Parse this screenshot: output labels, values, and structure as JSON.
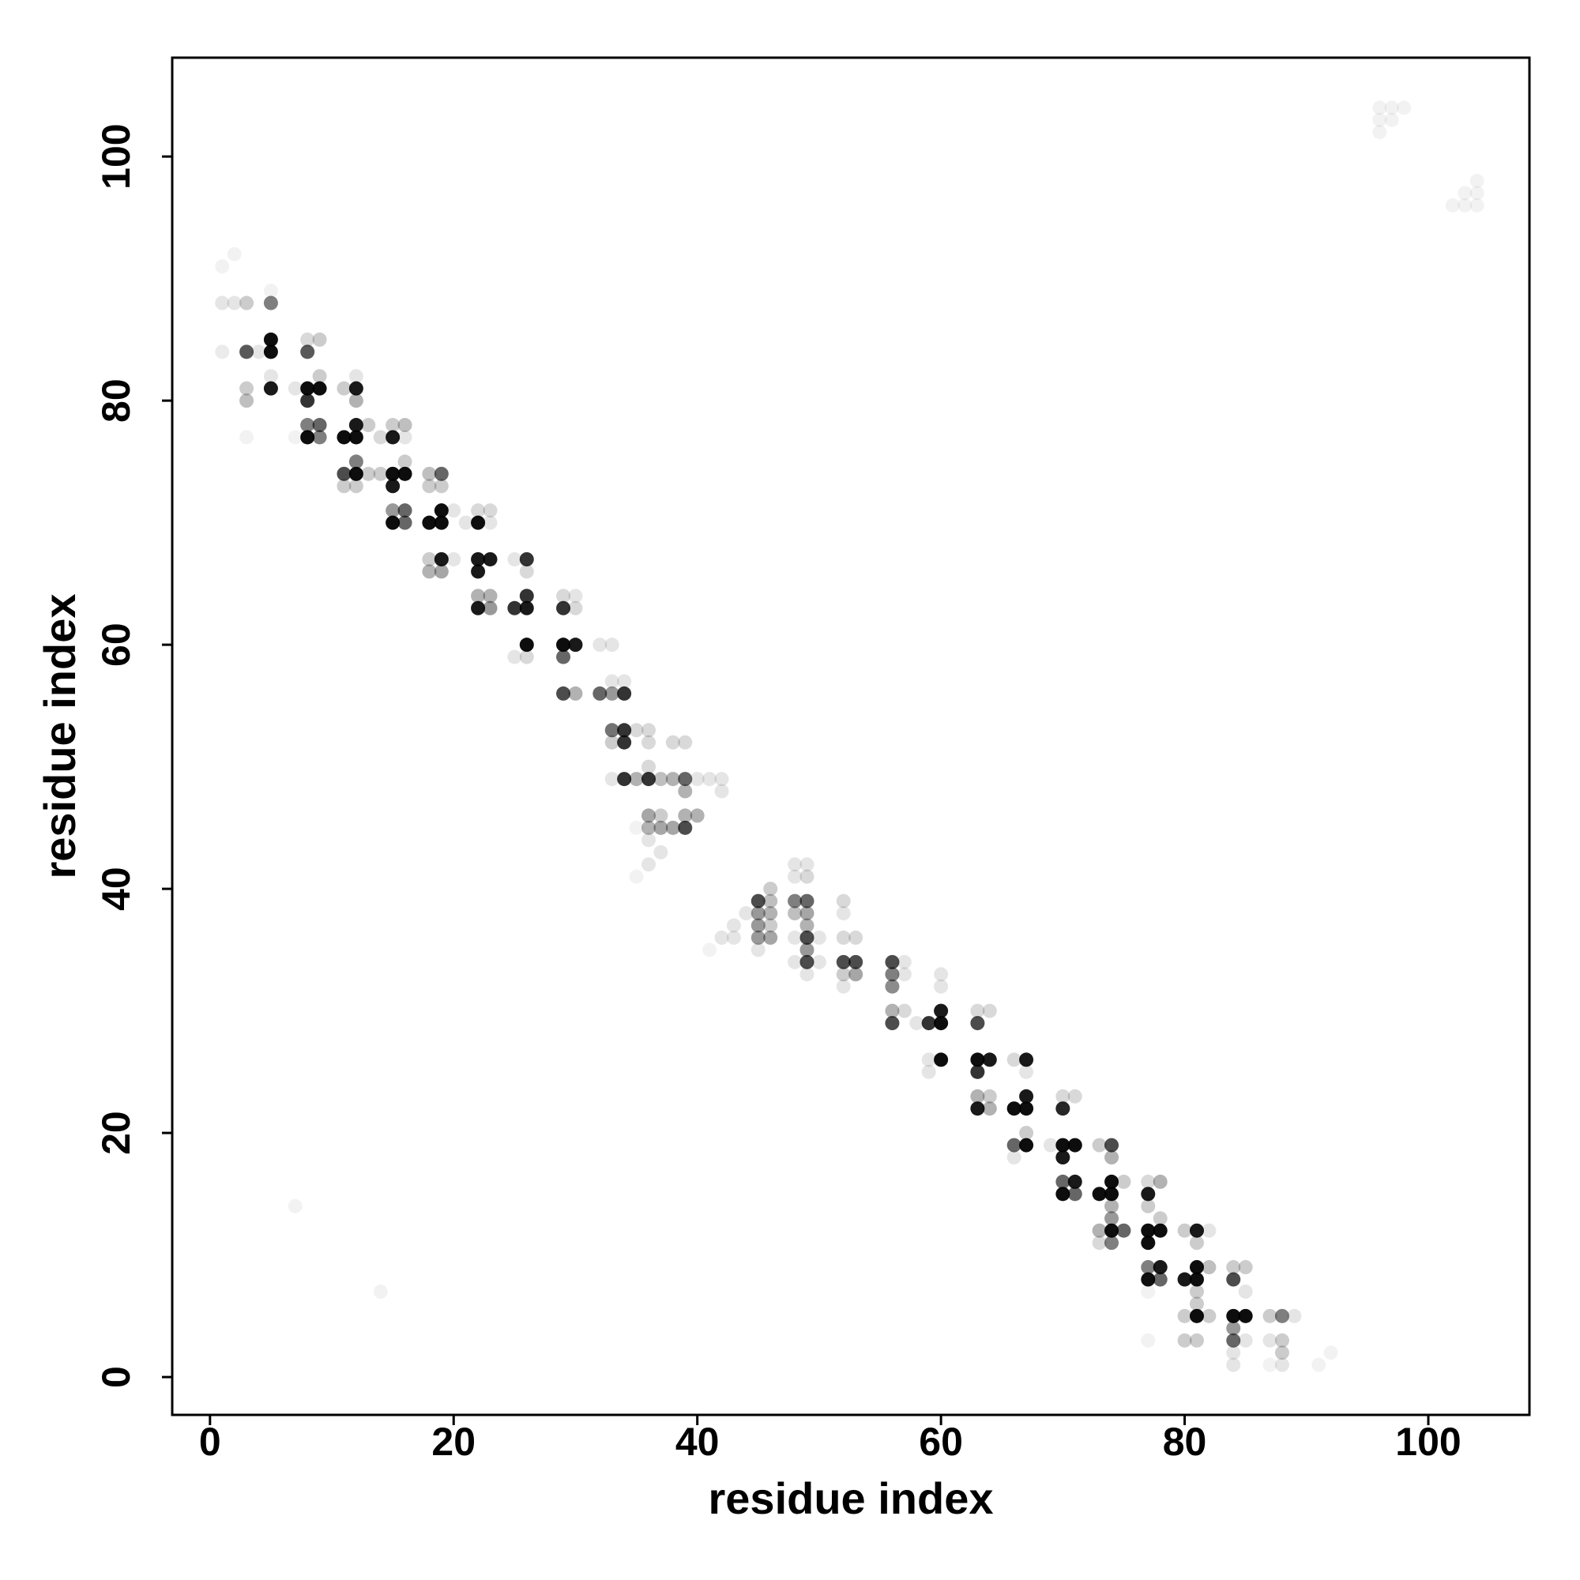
{
  "chart_data": {
    "type": "scatter",
    "x_label": "residue index",
    "y_label": "residue index",
    "xlim": [
      -3.1,
      108.3
    ],
    "ylim": [
      -3.1,
      108.1
    ],
    "xticks": [
      0,
      20,
      40,
      60,
      80,
      100
    ],
    "yticks": [
      0,
      20,
      40,
      60,
      80,
      100
    ],
    "grid": false,
    "color": "#000000",
    "points": [
      [
        1,
        91,
        0.05
      ],
      [
        2,
        92,
        0.05
      ],
      [
        1,
        88,
        0.1
      ],
      [
        2,
        88,
        0.1
      ],
      [
        3,
        88,
        0.2
      ],
      [
        5,
        88,
        0.5
      ],
      [
        5,
        89,
        0.05
      ],
      [
        1,
        84,
        0.08
      ],
      [
        3,
        84,
        0.65
      ],
      [
        4,
        84,
        0.1
      ],
      [
        5,
        84,
        0.95
      ],
      [
        5,
        85,
        0.95
      ],
      [
        8,
        84,
        0.65
      ],
      [
        8,
        85,
        0.15
      ],
      [
        9,
        85,
        0.2
      ],
      [
        3,
        81,
        0.2
      ],
      [
        3,
        80,
        0.25
      ],
      [
        5,
        81,
        0.9
      ],
      [
        5,
        82,
        0.1
      ],
      [
        7,
        81,
        0.1
      ],
      [
        8,
        81,
        0.95
      ],
      [
        9,
        81,
        0.95
      ],
      [
        8,
        80,
        0.8
      ],
      [
        9,
        82,
        0.2
      ],
      [
        3,
        77,
        0.05
      ],
      [
        8,
        77,
        0.95
      ],
      [
        9,
        77,
        0.5
      ],
      [
        8,
        78,
        0.5
      ],
      [
        9,
        78,
        0.6
      ],
      [
        7,
        77,
        0.05
      ],
      [
        11,
        81,
        0.2
      ],
      [
        12,
        81,
        0.9
      ],
      [
        12,
        80,
        0.3
      ],
      [
        12,
        82,
        0.1
      ],
      [
        11,
        77,
        0.95
      ],
      [
        12,
        77,
        0.95
      ],
      [
        12,
        78,
        0.9
      ],
      [
        13,
        78,
        0.2
      ],
      [
        14,
        77,
        0.15
      ],
      [
        15,
        77,
        0.9
      ],
      [
        15,
        78,
        0.2
      ],
      [
        16,
        78,
        0.25
      ],
      [
        16,
        77,
        0.1
      ],
      [
        11,
        74,
        0.7
      ],
      [
        12,
        74,
        0.95
      ],
      [
        12,
        75,
        0.5
      ],
      [
        12,
        73,
        0.2
      ],
      [
        11,
        73,
        0.2
      ],
      [
        13,
        74,
        0.2
      ],
      [
        14,
        74,
        0.2
      ],
      [
        15,
        74,
        0.95
      ],
      [
        16,
        74,
        0.95
      ],
      [
        15,
        73,
        0.9
      ],
      [
        16,
        75,
        0.2
      ],
      [
        15,
        71,
        0.4
      ],
      [
        16,
        71,
        0.6
      ],
      [
        15,
        70,
        0.95
      ],
      [
        16,
        70,
        0.6
      ],
      [
        18,
        74,
        0.25
      ],
      [
        19,
        74,
        0.6
      ],
      [
        18,
        73,
        0.2
      ],
      [
        19,
        73,
        0.2
      ],
      [
        18,
        70,
        0.95
      ],
      [
        19,
        70,
        0.95
      ],
      [
        19,
        71,
        0.95
      ],
      [
        20,
        71,
        0.1
      ],
      [
        21,
        70,
        0.1
      ],
      [
        22,
        71,
        0.15
      ],
      [
        23,
        71,
        0.15
      ],
      [
        22,
        70,
        0.95
      ],
      [
        23,
        70,
        0.1
      ],
      [
        18,
        67,
        0.2
      ],
      [
        19,
        67,
        0.9
      ],
      [
        18,
        66,
        0.3
      ],
      [
        19,
        66,
        0.35
      ],
      [
        20,
        67,
        0.1
      ],
      [
        22,
        67,
        0.9
      ],
      [
        23,
        67,
        0.9
      ],
      [
        22,
        66,
        0.9
      ],
      [
        25,
        67,
        0.1
      ],
      [
        26,
        67,
        0.8
      ],
      [
        26,
        66,
        0.15
      ],
      [
        22,
        64,
        0.3
      ],
      [
        23,
        64,
        0.3
      ],
      [
        22,
        63,
        0.9
      ],
      [
        23,
        63,
        0.4
      ],
      [
        25,
        63,
        0.8
      ],
      [
        26,
        63,
        0.9
      ],
      [
        26,
        64,
        0.8
      ],
      [
        25,
        59,
        0.1
      ],
      [
        26,
        59,
        0.15
      ],
      [
        26,
        60,
        0.95
      ],
      [
        29,
        64,
        0.15
      ],
      [
        30,
        64,
        0.1
      ],
      [
        29,
        63,
        0.8
      ],
      [
        30,
        63,
        0.15
      ],
      [
        29,
        60,
        0.95
      ],
      [
        30,
        60,
        0.9
      ],
      [
        29,
        59,
        0.6
      ],
      [
        32,
        60,
        0.1
      ],
      [
        33,
        60,
        0.1
      ],
      [
        29,
        56,
        0.7
      ],
      [
        30,
        56,
        0.3
      ],
      [
        32,
        56,
        0.6
      ],
      [
        33,
        56,
        0.4
      ],
      [
        34,
        56,
        0.8
      ],
      [
        34,
        57,
        0.1
      ],
      [
        33,
        57,
        0.1
      ],
      [
        33,
        53,
        0.55
      ],
      [
        34,
        53,
        0.8
      ],
      [
        34,
        52,
        0.8
      ],
      [
        33,
        52,
        0.2
      ],
      [
        35,
        53,
        0.15
      ],
      [
        36,
        53,
        0.15
      ],
      [
        36,
        52,
        0.15
      ],
      [
        38,
        52,
        0.15
      ],
      [
        39,
        52,
        0.15
      ],
      [
        33,
        49,
        0.1
      ],
      [
        34,
        49,
        0.8
      ],
      [
        35,
        49,
        0.3
      ],
      [
        36,
        49,
        0.8
      ],
      [
        36,
        50,
        0.15
      ],
      [
        37,
        49,
        0.25
      ],
      [
        38,
        49,
        0.3
      ],
      [
        39,
        49,
        0.6
      ],
      [
        39,
        48,
        0.3
      ],
      [
        40,
        49,
        0.1
      ],
      [
        41,
        49,
        0.1
      ],
      [
        42,
        49,
        0.1
      ],
      [
        42,
        48,
        0.1
      ],
      [
        36,
        46,
        0.35
      ],
      [
        37,
        46,
        0.2
      ],
      [
        36,
        45,
        0.3
      ],
      [
        37,
        45,
        0.35
      ],
      [
        38,
        45,
        0.35
      ],
      [
        39,
        45,
        0.7
      ],
      [
        39,
        46,
        0.3
      ],
      [
        40,
        46,
        0.3
      ],
      [
        35,
        45,
        0.05
      ],
      [
        36,
        44,
        0.1
      ],
      [
        37,
        43,
        0.1
      ],
      [
        36,
        42,
        0.1
      ],
      [
        35,
        41,
        0.05
      ],
      [
        41,
        35,
        0.05
      ],
      [
        42,
        36,
        0.1
      ],
      [
        43,
        36,
        0.1
      ],
      [
        43,
        37,
        0.1
      ],
      [
        44,
        38,
        0.1
      ],
      [
        45,
        39,
        0.7
      ],
      [
        46,
        39,
        0.25
      ],
      [
        46,
        40,
        0.2
      ],
      [
        45,
        38,
        0.4
      ],
      [
        46,
        38,
        0.3
      ],
      [
        45,
        37,
        0.4
      ],
      [
        46,
        37,
        0.2
      ],
      [
        45,
        36,
        0.4
      ],
      [
        46,
        36,
        0.35
      ],
      [
        45,
        35,
        0.1
      ],
      [
        48,
        42,
        0.1
      ],
      [
        49,
        42,
        0.1
      ],
      [
        48,
        41,
        0.1
      ],
      [
        49,
        41,
        0.15
      ],
      [
        48,
        39,
        0.5
      ],
      [
        49,
        39,
        0.6
      ],
      [
        48,
        38,
        0.25
      ],
      [
        49,
        38,
        0.35
      ],
      [
        49,
        37,
        0.3
      ],
      [
        48,
        36,
        0.1
      ],
      [
        49,
        36,
        0.7
      ],
      [
        50,
        36,
        0.1
      ],
      [
        49,
        35,
        0.4
      ],
      [
        48,
        34,
        0.1
      ],
      [
        49,
        34,
        0.7
      ],
      [
        49,
        33,
        0.1
      ],
      [
        50,
        34,
        0.1
      ],
      [
        52,
        39,
        0.15
      ],
      [
        52,
        38,
        0.1
      ],
      [
        52,
        36,
        0.15
      ],
      [
        53,
        36,
        0.15
      ],
      [
        52,
        34,
        0.7
      ],
      [
        53,
        34,
        0.7
      ],
      [
        52,
        33,
        0.2
      ],
      [
        53,
        33,
        0.35
      ],
      [
        52,
        32,
        0.1
      ],
      [
        56,
        34,
        0.7
      ],
      [
        57,
        34,
        0.1
      ],
      [
        56,
        33,
        0.5
      ],
      [
        57,
        33,
        0.1
      ],
      [
        56,
        32,
        0.45
      ],
      [
        56,
        30,
        0.3
      ],
      [
        57,
        30,
        0.15
      ],
      [
        56,
        29,
        0.7
      ],
      [
        58,
        29,
        0.1
      ],
      [
        59,
        29,
        0.8
      ],
      [
        60,
        29,
        0.95
      ],
      [
        60,
        30,
        0.9
      ],
      [
        60,
        32,
        0.1
      ],
      [
        60,
        33,
        0.1
      ],
      [
        59,
        26,
        0.1
      ],
      [
        60,
        26,
        0.95
      ],
      [
        59,
        25,
        0.1
      ],
      [
        63,
        30,
        0.15
      ],
      [
        64,
        30,
        0.15
      ],
      [
        63,
        29,
        0.7
      ],
      [
        63,
        26,
        0.95
      ],
      [
        64,
        26,
        0.9
      ],
      [
        63,
        25,
        0.8
      ],
      [
        63,
        23,
        0.3
      ],
      [
        64,
        23,
        0.2
      ],
      [
        63,
        22,
        0.9
      ],
      [
        64,
        22,
        0.3
      ],
      [
        66,
        26,
        0.15
      ],
      [
        67,
        26,
        0.9
      ],
      [
        66,
        22,
        0.95
      ],
      [
        67,
        22,
        0.95
      ],
      [
        67,
        23,
        0.9
      ],
      [
        67,
        25,
        0.1
      ],
      [
        66,
        19,
        0.6
      ],
      [
        67,
        19,
        0.95
      ],
      [
        66,
        18,
        0.1
      ],
      [
        67,
        20,
        0.2
      ],
      [
        69,
        19,
        0.1
      ],
      [
        70,
        19,
        0.95
      ],
      [
        71,
        19,
        0.95
      ],
      [
        70,
        18,
        0.9
      ],
      [
        70,
        22,
        0.85
      ],
      [
        70,
        23,
        0.15
      ],
      [
        71,
        23,
        0.15
      ],
      [
        70,
        16,
        0.6
      ],
      [
        71,
        16,
        0.9
      ],
      [
        70,
        15,
        0.95
      ],
      [
        71,
        15,
        0.6
      ],
      [
        73,
        19,
        0.2
      ],
      [
        74,
        19,
        0.7
      ],
      [
        74,
        18,
        0.3
      ],
      [
        73,
        15,
        0.95
      ],
      [
        74,
        15,
        0.95
      ],
      [
        74,
        16,
        0.95
      ],
      [
        75,
        16,
        0.2
      ],
      [
        74,
        14,
        0.3
      ],
      [
        74,
        13,
        0.4
      ],
      [
        73,
        12,
        0.3
      ],
      [
        74,
        12,
        0.95
      ],
      [
        74,
        11,
        0.5
      ],
      [
        73,
        11,
        0.15
      ],
      [
        75,
        12,
        0.6
      ],
      [
        77,
        16,
        0.15
      ],
      [
        78,
        16,
        0.3
      ],
      [
        77,
        15,
        0.9
      ],
      [
        77,
        14,
        0.2
      ],
      [
        77,
        12,
        0.95
      ],
      [
        78,
        12,
        0.95
      ],
      [
        77,
        11,
        0.95
      ],
      [
        78,
        13,
        0.2
      ],
      [
        77,
        9,
        0.5
      ],
      [
        78,
        9,
        0.9
      ],
      [
        77,
        8,
        0.95
      ],
      [
        78,
        8,
        0.6
      ],
      [
        77,
        7,
        0.05
      ],
      [
        77,
        3,
        0.05
      ],
      [
        80,
        12,
        0.2
      ],
      [
        81,
        12,
        0.9
      ],
      [
        81,
        11,
        0.2
      ],
      [
        82,
        12,
        0.1
      ],
      [
        80,
        8,
        0.9
      ],
      [
        81,
        8,
        0.95
      ],
      [
        81,
        9,
        0.95
      ],
      [
        82,
        9,
        0.25
      ],
      [
        81,
        7,
        0.2
      ],
      [
        81,
        6,
        0.2
      ],
      [
        80,
        5,
        0.2
      ],
      [
        81,
        5,
        0.95
      ],
      [
        82,
        5,
        0.2
      ],
      [
        80,
        3,
        0.2
      ],
      [
        81,
        3,
        0.2
      ],
      [
        84,
        9,
        0.2
      ],
      [
        85,
        9,
        0.2
      ],
      [
        84,
        8,
        0.7
      ],
      [
        85,
        7,
        0.1
      ],
      [
        84,
        5,
        0.95
      ],
      [
        85,
        5,
        0.95
      ],
      [
        84,
        4,
        0.4
      ],
      [
        84,
        3,
        0.6
      ],
      [
        84,
        2,
        0.1
      ],
      [
        84,
        1,
        0.1
      ],
      [
        85,
        3,
        0.1
      ],
      [
        87,
        5,
        0.2
      ],
      [
        88,
        5,
        0.5
      ],
      [
        89,
        5,
        0.1
      ],
      [
        87,
        3,
        0.1
      ],
      [
        88,
        3,
        0.2
      ],
      [
        88,
        2,
        0.2
      ],
      [
        88,
        1,
        0.1
      ],
      [
        87,
        1,
        0.05
      ],
      [
        91,
        1,
        0.05
      ],
      [
        92,
        2,
        0.05
      ],
      [
        7,
        14,
        0.05
      ],
      [
        14,
        7,
        0.05
      ],
      [
        96,
        104,
        0.05
      ],
      [
        97,
        104,
        0.05
      ],
      [
        98,
        104,
        0.05
      ],
      [
        96,
        103,
        0.05
      ],
      [
        97,
        103,
        0.05
      ],
      [
        96,
        102,
        0.05
      ],
      [
        102,
        96,
        0.05
      ],
      [
        103,
        97,
        0.05
      ],
      [
        104,
        98,
        0.05
      ],
      [
        103,
        96,
        0.05
      ],
      [
        104,
        96,
        0.05
      ],
      [
        104,
        97,
        0.05
      ]
    ]
  }
}
